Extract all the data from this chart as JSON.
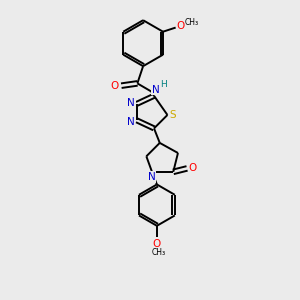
{
  "bg_color": "#ebebeb",
  "bond_color": "#000000",
  "N_color": "#0000cc",
  "O_color": "#ff0000",
  "S_color": "#ccaa00",
  "H_color": "#008080",
  "line_width": 1.4,
  "figsize": [
    3.0,
    3.0
  ],
  "dpi": 100,
  "xlim": [
    0,
    10
  ],
  "ylim": [
    0,
    13
  ]
}
